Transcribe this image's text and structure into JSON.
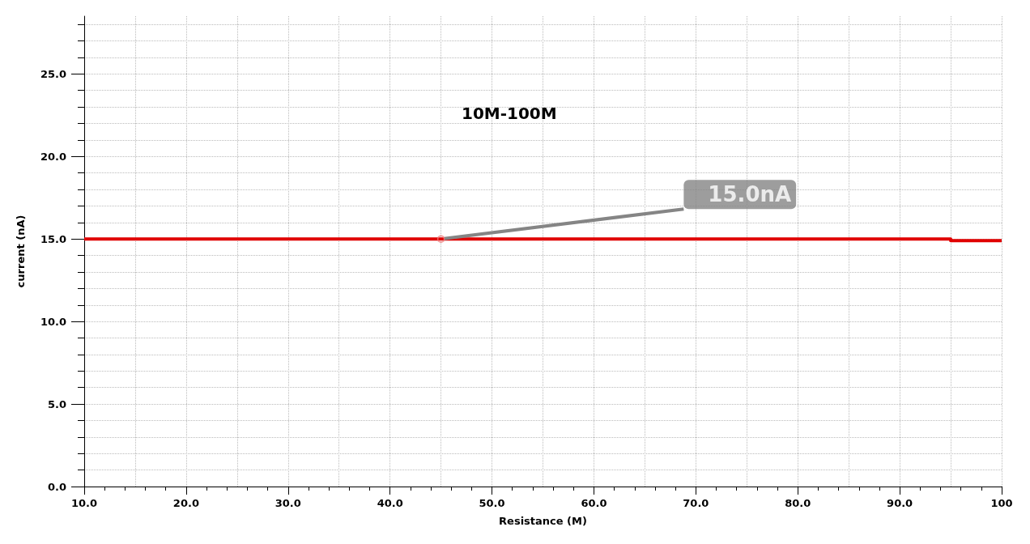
{
  "chart_data": {
    "type": "line",
    "title": "10M-100M",
    "xlabel": "Resistance (M)",
    "ylabel": "current (nA)",
    "x": [
      10,
      95,
      95,
      100
    ],
    "series": [
      {
        "color": "#e00000",
        "values": [
          15.0,
          15.0,
          14.9,
          14.9
        ]
      }
    ],
    "annotations": [
      {
        "text": "15.0nA",
        "x": 45,
        "y": 15
      }
    ],
    "xlim": [
      10,
      100
    ],
    "xticks": [
      {
        "value": 10,
        "label": "10.0"
      },
      {
        "value": 20,
        "label": "20.0"
      },
      {
        "value": 30,
        "label": "30.0"
      },
      {
        "value": 40,
        "label": "40.0"
      },
      {
        "value": 50,
        "label": "50.0"
      },
      {
        "value": 60,
        "label": "60.0"
      },
      {
        "value": 70,
        "label": "70.0"
      },
      {
        "value": 80,
        "label": "80.0"
      },
      {
        "value": 90,
        "label": "90.0"
      },
      100
    ],
    "ylim": [
      0,
      28.5
    ],
    "yticks": [
      {
        "value": 0,
        "label": "0.0"
      },
      {
        "value": 5,
        "label": "5.0"
      },
      {
        "value": 10,
        "label": "10.0"
      },
      {
        "value": 15,
        "label": "15.0"
      },
      {
        "value": 20,
        "label": "20.0"
      },
      {
        "value": 25,
        "label": "25.0"
      }
    ],
    "grid": true,
    "marker": "none",
    "line_style": "solid"
  }
}
